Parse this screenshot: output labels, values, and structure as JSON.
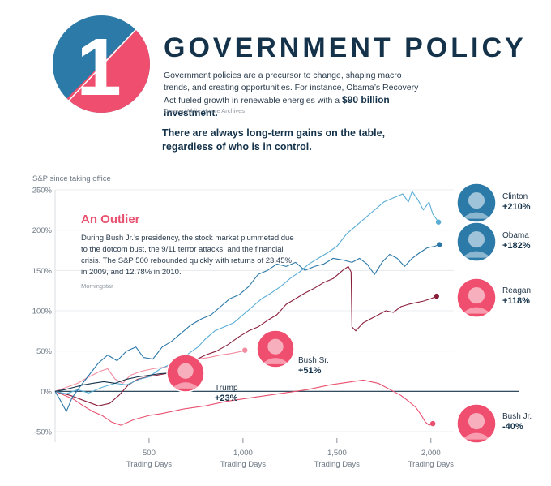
{
  "header": {
    "number": "1",
    "title": "GOVERNMENT POLICY",
    "intro": "Government policies are a precursor to change, shaping macro trends, and creating opportunities. For instance, Obama’s Recovery Act fueled growth in renewable energies with a ",
    "intro_highlight": "$90 billion investment.",
    "source": "Obama White House Archives",
    "tagline": "There are always long-term gains on the table, regardless of who is in control."
  },
  "callout": {
    "title": "An Outlier",
    "text": "During Bush Jr.’s presidency, the stock market plummeted due to the dotcom bust, the 9/11 terror attacks, and the financial crisis. The S&P 500 rebounded quickly with returns of 23.45% in 2009, and 12.78% in 2010.",
    "source": "Morningstar"
  },
  "colors": {
    "navy": "#14324a",
    "blue_dark": "#2b78a8",
    "blue_light": "#5aaed6",
    "maroon": "#8a1f3c",
    "pink": "#e8516f",
    "pink_light": "#f28ca0",
    "badge_blue": "#2c7aa8",
    "badge_pink": "#f04e6e"
  },
  "chart_data": {
    "type": "line",
    "title": "",
    "ylabel": "S&P since taking office",
    "xlabel": "Trading Days",
    "xlim": [
      0,
      2100
    ],
    "ylim": [
      -50,
      250
    ],
    "y_ticks": [
      250,
      200,
      150,
      100,
      50,
      0,
      -50
    ],
    "y_tick_labels": [
      "250%",
      "200%",
      "150%",
      "100%",
      "50%",
      "0%",
      "-50%"
    ],
    "x_ticks": [
      500,
      1000,
      1500,
      2000
    ],
    "x_tick_labels": [
      "500",
      "1,000",
      "1,500",
      "2,000"
    ],
    "x_unit_label": "Trading Days",
    "series": [
      {
        "name": "Clinton",
        "value_label": "+210%",
        "color": "#5aaed6",
        "face": "#2c7aa8",
        "points": [
          [
            0,
            0
          ],
          [
            60,
            -3
          ],
          [
            120,
            2
          ],
          [
            180,
            -2
          ],
          [
            250,
            5
          ],
          [
            320,
            10
          ],
          [
            380,
            8
          ],
          [
            450,
            15
          ],
          [
            500,
            18
          ],
          [
            560,
            28
          ],
          [
            600,
            32
          ],
          [
            650,
            38
          ],
          [
            700,
            45
          ],
          [
            760,
            55
          ],
          [
            800,
            65
          ],
          [
            850,
            75
          ],
          [
            900,
            80
          ],
          [
            950,
            85
          ],
          [
            1000,
            95
          ],
          [
            1050,
            105
          ],
          [
            1100,
            115
          ],
          [
            1150,
            122
          ],
          [
            1200,
            130
          ],
          [
            1250,
            140
          ],
          [
            1300,
            148
          ],
          [
            1350,
            158
          ],
          [
            1400,
            165
          ],
          [
            1450,
            172
          ],
          [
            1500,
            180
          ],
          [
            1550,
            195
          ],
          [
            1600,
            205
          ],
          [
            1650,
            215
          ],
          [
            1700,
            225
          ],
          [
            1750,
            235
          ],
          [
            1800,
            240
          ],
          [
            1850,
            245
          ],
          [
            1880,
            235
          ],
          [
            1900,
            248
          ],
          [
            1930,
            238
          ],
          [
            1960,
            225
          ],
          [
            1990,
            235
          ],
          [
            2010,
            220
          ],
          [
            2040,
            210
          ]
        ]
      },
      {
        "name": "Obama",
        "value_label": "+182%",
        "color": "#2b78a8",
        "face": "#2c7aa8",
        "points": [
          [
            0,
            0
          ],
          [
            30,
            -12
          ],
          [
            60,
            -25
          ],
          [
            90,
            -8
          ],
          [
            130,
            5
          ],
          [
            180,
            20
          ],
          [
            230,
            35
          ],
          [
            280,
            45
          ],
          [
            330,
            38
          ],
          [
            380,
            50
          ],
          [
            430,
            55
          ],
          [
            470,
            42
          ],
          [
            520,
            40
          ],
          [
            570,
            55
          ],
          [
            620,
            62
          ],
          [
            670,
            72
          ],
          [
            720,
            82
          ],
          [
            780,
            90
          ],
          [
            830,
            95
          ],
          [
            880,
            105
          ],
          [
            930,
            115
          ],
          [
            980,
            120
          ],
          [
            1030,
            130
          ],
          [
            1080,
            145
          ],
          [
            1130,
            150
          ],
          [
            1180,
            158
          ],
          [
            1230,
            155
          ],
          [
            1280,
            160
          ],
          [
            1330,
            150
          ],
          [
            1380,
            155
          ],
          [
            1430,
            158
          ],
          [
            1480,
            165
          ],
          [
            1530,
            163
          ],
          [
            1580,
            160
          ],
          [
            1620,
            165
          ],
          [
            1660,
            158
          ],
          [
            1700,
            145
          ],
          [
            1740,
            160
          ],
          [
            1780,
            170
          ],
          [
            1820,
            165
          ],
          [
            1860,
            155
          ],
          [
            1900,
            165
          ],
          [
            1940,
            172
          ],
          [
            1980,
            178
          ],
          [
            2020,
            180
          ],
          [
            2045,
            182
          ]
        ]
      },
      {
        "name": "Reagan",
        "value_label": "+118%",
        "color": "#8a1f3c",
        "face": "#f04e6e",
        "points": [
          [
            0,
            0
          ],
          [
            80,
            -5
          ],
          [
            160,
            -12
          ],
          [
            230,
            -18
          ],
          [
            290,
            -15
          ],
          [
            340,
            -5
          ],
          [
            390,
            8
          ],
          [
            440,
            15
          ],
          [
            490,
            18
          ],
          [
            540,
            20
          ],
          [
            590,
            22
          ],
          [
            640,
            25
          ],
          [
            690,
            30
          ],
          [
            740,
            38
          ],
          [
            800,
            45
          ],
          [
            860,
            50
          ],
          [
            920,
            58
          ],
          [
            980,
            68
          ],
          [
            1030,
            75
          ],
          [
            1080,
            80
          ],
          [
            1130,
            88
          ],
          [
            1180,
            95
          ],
          [
            1230,
            108
          ],
          [
            1280,
            115
          ],
          [
            1330,
            122
          ],
          [
            1380,
            128
          ],
          [
            1430,
            135
          ],
          [
            1480,
            140
          ],
          [
            1530,
            150
          ],
          [
            1560,
            155
          ],
          [
            1575,
            148
          ],
          [
            1580,
            80
          ],
          [
            1600,
            75
          ],
          [
            1640,
            85
          ],
          [
            1680,
            90
          ],
          [
            1720,
            95
          ],
          [
            1760,
            100
          ],
          [
            1800,
            98
          ],
          [
            1840,
            105
          ],
          [
            1880,
            108
          ],
          [
            1920,
            110
          ],
          [
            1960,
            112
          ],
          [
            2000,
            115
          ],
          [
            2030,
            118
          ]
        ]
      },
      {
        "name": "Bush Sr.",
        "value_label": "+51%",
        "color": "#f28ca0",
        "face": "#f04e6e",
        "points": [
          [
            0,
            0
          ],
          [
            60,
            5
          ],
          [
            120,
            10
          ],
          [
            180,
            18
          ],
          [
            240,
            25
          ],
          [
            280,
            28
          ],
          [
            320,
            15
          ],
          [
            360,
            10
          ],
          [
            400,
            20
          ],
          [
            460,
            25
          ],
          [
            520,
            28
          ],
          [
            580,
            30
          ],
          [
            640,
            32
          ],
          [
            700,
            35
          ],
          [
            760,
            40
          ],
          [
            820,
            42
          ],
          [
            880,
            45
          ],
          [
            940,
            47
          ],
          [
            1000,
            50
          ],
          [
            1010,
            51
          ]
        ]
      },
      {
        "name": "Bush Jr.",
        "value_label": "-40%",
        "color": "#e8516f",
        "face": "#f04e6e",
        "points": [
          [
            0,
            0
          ],
          [
            50,
            -5
          ],
          [
            100,
            -10
          ],
          [
            150,
            -18
          ],
          [
            200,
            -25
          ],
          [
            250,
            -30
          ],
          [
            300,
            -38
          ],
          [
            350,
            -42
          ],
          [
            420,
            -35
          ],
          [
            500,
            -30
          ],
          [
            560,
            -28
          ],
          [
            620,
            -25
          ],
          [
            680,
            -22
          ],
          [
            740,
            -20
          ],
          [
            800,
            -18
          ],
          [
            860,
            -15
          ],
          [
            920,
            -12
          ],
          [
            980,
            -10
          ],
          [
            1040,
            -8
          ],
          [
            1100,
            -6
          ],
          [
            1160,
            -4
          ],
          [
            1220,
            -2
          ],
          [
            1280,
            0
          ],
          [
            1340,
            2
          ],
          [
            1400,
            5
          ],
          [
            1460,
            8
          ],
          [
            1520,
            10
          ],
          [
            1580,
            12
          ],
          [
            1640,
            14
          ],
          [
            1680,
            12
          ],
          [
            1720,
            10
          ],
          [
            1760,
            5
          ],
          [
            1800,
            0
          ],
          [
            1840,
            -5
          ],
          [
            1880,
            -12
          ],
          [
            1920,
            -20
          ],
          [
            1950,
            -30
          ],
          [
            1970,
            -38
          ],
          [
            1990,
            -42
          ],
          [
            2010,
            -40
          ]
        ]
      },
      {
        "name": "Trump",
        "value_label": "+23%",
        "color": "#14324a",
        "face": "#f04e6e",
        "points": [
          [
            0,
            0
          ],
          [
            50,
            2
          ],
          [
            100,
            5
          ],
          [
            150,
            8
          ],
          [
            200,
            10
          ],
          [
            260,
            12
          ],
          [
            320,
            10
          ],
          [
            380,
            15
          ],
          [
            440,
            18
          ],
          [
            500,
            20
          ],
          [
            560,
            22
          ],
          [
            620,
            23
          ],
          [
            670,
            23
          ]
        ]
      }
    ]
  }
}
